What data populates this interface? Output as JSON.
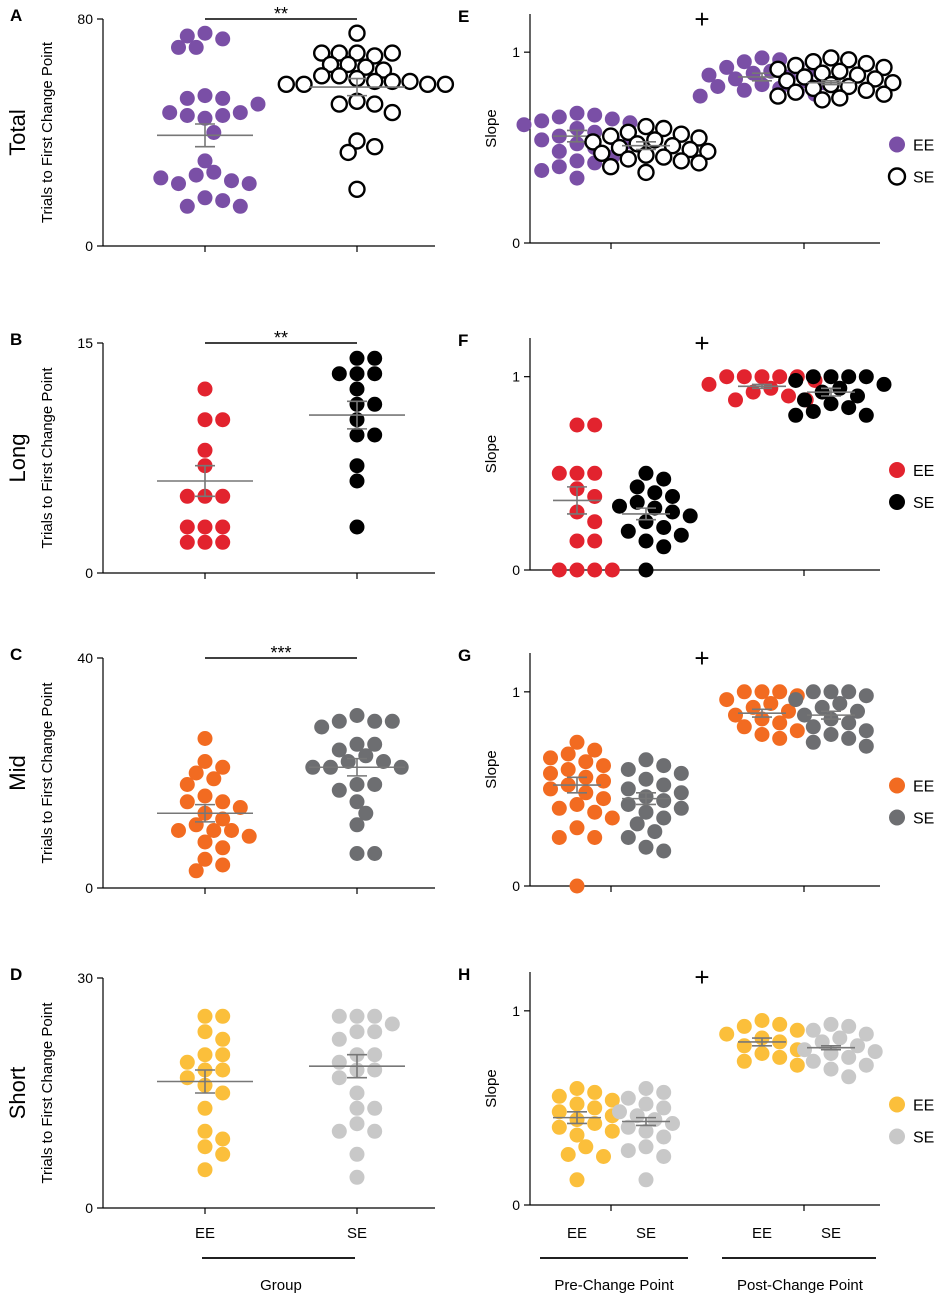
{
  "colors": {
    "purple": "#7a4fa6",
    "red": "#e2232e",
    "orange": "#f26b21",
    "yellow": "#fbbf3b",
    "black": "#000000",
    "gray": "#6d6e71",
    "lightgray": "#c8c8c8",
    "mean_line": "#777777"
  },
  "common": {
    "left_ylabel": "Trials to First Change Point",
    "right_ylabel": "Slope",
    "group_label": "Group",
    "pre_label": "Pre-Change Point",
    "post_label": "Post-Change Point",
    "cat_ee": "EE",
    "cat_se": "SE"
  },
  "chart_data": [
    {
      "panel": "A",
      "type": "scatter",
      "row_label": "Total",
      "ylabel": "Trials to First Change Point",
      "ylim": [
        0,
        80
      ],
      "yticks": [
        0,
        80
      ],
      "categories": [
        "EE",
        "SE"
      ],
      "significance": "**",
      "series": [
        {
          "name": "EE",
          "fill": "purple",
          "hollow": false,
          "mean": 39,
          "sem": 4,
          "values": [
            75,
            73,
            70,
            70,
            74,
            53,
            52,
            52,
            45,
            46,
            46,
            47,
            47,
            50,
            40,
            30,
            26,
            25,
            23,
            22,
            22,
            24,
            17,
            16,
            14,
            14
          ]
        },
        {
          "name": "SE",
          "fill": "black",
          "hollow": true,
          "mean": 56,
          "sem": 3,
          "values": [
            75,
            68,
            67,
            68,
            68,
            68,
            63,
            64,
            64,
            62,
            60,
            60,
            59,
            58,
            58,
            58,
            57,
            57,
            57,
            57,
            51,
            50,
            50,
            47,
            37,
            35,
            33,
            20
          ]
        }
      ]
    },
    {
      "panel": "B",
      "type": "scatter",
      "row_label": "Long",
      "ylabel": "Trials to First Change Point",
      "ylim": [
        0,
        15
      ],
      "yticks": [
        0,
        15
      ],
      "categories": [
        "EE",
        "SE"
      ],
      "significance": "**",
      "series": [
        {
          "name": "EE",
          "fill": "red",
          "hollow": false,
          "mean": 6,
          "sem": 1,
          "values": [
            12,
            10,
            10,
            8,
            7,
            5,
            5,
            5,
            3,
            3,
            3,
            2,
            2,
            2
          ]
        },
        {
          "name": "SE",
          "fill": "black",
          "hollow": false,
          "mean": 10.3,
          "sem": 0.9,
          "values": [
            14,
            14,
            13,
            13,
            13,
            12,
            11,
            11,
            10,
            9,
            9,
            7,
            6,
            3
          ]
        }
      ]
    },
    {
      "panel": "C",
      "type": "scatter",
      "row_label": "Mid",
      "ylabel": "Trials to First Change Point",
      "ylim": [
        0,
        40
      ],
      "yticks": [
        0,
        40
      ],
      "categories": [
        "EE",
        "SE"
      ],
      "significance": "***",
      "series": [
        {
          "name": "EE",
          "fill": "orange",
          "hollow": false,
          "mean": 13,
          "sem": 1.5,
          "values": [
            26,
            22,
            21,
            20,
            19,
            18,
            16,
            15,
            15,
            14,
            13,
            12,
            11,
            10,
            10,
            10,
            9,
            8,
            7,
            5,
            4,
            3
          ]
        },
        {
          "name": "SE",
          "fill": "gray",
          "hollow": false,
          "mean": 21,
          "sem": 1.5,
          "values": [
            30,
            29,
            29,
            29,
            28,
            25,
            25,
            24,
            23,
            22,
            22,
            21,
            21,
            21,
            18,
            18,
            17,
            15,
            13,
            11,
            6,
            6
          ]
        }
      ]
    },
    {
      "panel": "D",
      "type": "scatter",
      "row_label": "Short",
      "ylabel": "Trials to First Change Point",
      "ylim": [
        0,
        30
      ],
      "yticks": [
        0,
        30
      ],
      "categories": [
        "EE",
        "SE"
      ],
      "significance": "",
      "series": [
        {
          "name": "EE",
          "fill": "yellow",
          "hollow": false,
          "mean": 16.5,
          "sem": 1.5,
          "values": [
            25,
            25,
            23,
            22,
            20,
            20,
            19,
            18,
            18,
            17,
            16,
            15,
            13,
            10,
            9,
            8,
            7,
            5
          ]
        },
        {
          "name": "SE",
          "fill": "lightgray",
          "hollow": false,
          "mean": 18.5,
          "sem": 1.5,
          "values": [
            25,
            25,
            25,
            24,
            23,
            23,
            22,
            20,
            20,
            19,
            18,
            18,
            17,
            15,
            13,
            13,
            11,
            10,
            10,
            7,
            4
          ]
        }
      ]
    },
    {
      "panel": "E",
      "type": "scatter",
      "ylabel": "Slope",
      "ylim": [
        0,
        1.2
      ],
      "yticks": [
        0,
        1
      ],
      "categories": [
        "EE",
        "SE",
        "EE",
        "SE"
      ],
      "groups": [
        "Pre-Change Point",
        "Post-Change Point"
      ],
      "annotation": "+",
      "legend": [
        {
          "label": "EE",
          "fill": "purple",
          "hollow": false
        },
        {
          "label": "SE",
          "fill": "black",
          "hollow": true
        }
      ],
      "series": [
        {
          "name": "EE pre",
          "fill": "purple",
          "hollow": false,
          "mean": 0.56,
          "sem": 0.03,
          "values": [
            0.68,
            0.67,
            0.66,
            0.65,
            0.64,
            0.63,
            0.62,
            0.6,
            0.58,
            0.56,
            0.55,
            0.54,
            0.53,
            0.52,
            0.5,
            0.48,
            0.45,
            0.43,
            0.42,
            0.4,
            0.38,
            0.34
          ]
        },
        {
          "name": "SE pre",
          "fill": "black",
          "hollow": true,
          "mean": 0.51,
          "sem": 0.02,
          "values": [
            0.61,
            0.6,
            0.58,
            0.57,
            0.56,
            0.55,
            0.54,
            0.53,
            0.52,
            0.51,
            0.5,
            0.49,
            0.48,
            0.47,
            0.46,
            0.45,
            0.44,
            0.43,
            0.42,
            0.4,
            0.37
          ]
        },
        {
          "name": "EE post",
          "fill": "purple",
          "hollow": false,
          "mean": 0.87,
          "sem": 0.02,
          "values": [
            0.97,
            0.96,
            0.95,
            0.93,
            0.92,
            0.91,
            0.9,
            0.89,
            0.88,
            0.87,
            0.86,
            0.85,
            0.84,
            0.83,
            0.82,
            0.81,
            0.8,
            0.79,
            0.78,
            0.77
          ]
        },
        {
          "name": "SE post",
          "fill": "black",
          "hollow": true,
          "mean": 0.84,
          "sem": 0.01,
          "values": [
            0.97,
            0.96,
            0.95,
            0.94,
            0.93,
            0.92,
            0.91,
            0.9,
            0.89,
            0.88,
            0.87,
            0.86,
            0.85,
            0.84,
            0.83,
            0.82,
            0.81,
            0.8,
            0.79,
            0.78,
            0.77,
            0.76,
            0.75
          ]
        }
      ]
    },
    {
      "panel": "F",
      "type": "scatter",
      "ylabel": "Slope",
      "ylim": [
        0,
        1.2
      ],
      "yticks": [
        0,
        1
      ],
      "categories": [
        "EE",
        "SE",
        "EE",
        "SE"
      ],
      "groups": [
        "Pre-Change Point",
        "Post-Change Point"
      ],
      "annotation": "+",
      "legend": [
        {
          "label": "EE",
          "fill": "red",
          "hollow": false
        },
        {
          "label": "SE",
          "fill": "black",
          "hollow": false
        }
      ],
      "series": [
        {
          "name": "EE pre",
          "fill": "red",
          "hollow": false,
          "mean": 0.36,
          "sem": 0.07,
          "values": [
            0.75,
            0.75,
            0.5,
            0.5,
            0.5,
            0.42,
            0.38,
            0.3,
            0.25,
            0.15,
            0.15,
            0,
            0,
            0,
            0
          ]
        },
        {
          "name": "SE pre",
          "fill": "black",
          "hollow": false,
          "mean": 0.29,
          "sem": 0.03,
          "values": [
            0.5,
            0.47,
            0.43,
            0.4,
            0.38,
            0.35,
            0.33,
            0.32,
            0.3,
            0.28,
            0.25,
            0.22,
            0.2,
            0.18,
            0.15,
            0.12,
            0
          ]
        },
        {
          "name": "EE post",
          "fill": "red",
          "hollow": false,
          "mean": 0.95,
          "sem": 0.01,
          "values": [
            1,
            1,
            1,
            1,
            1,
            0.98,
            0.96,
            0.94,
            0.92,
            0.9,
            0.88,
            0.88
          ]
        },
        {
          "name": "SE post",
          "fill": "black",
          "hollow": false,
          "mean": 0.92,
          "sem": 0.02,
          "values": [
            1,
            1,
            1,
            1,
            0.98,
            0.96,
            0.94,
            0.92,
            0.9,
            0.88,
            0.86,
            0.84,
            0.82,
            0.8,
            0.8
          ]
        }
      ]
    },
    {
      "panel": "G",
      "type": "scatter",
      "ylabel": "Slope",
      "ylim": [
        0,
        1.2
      ],
      "yticks": [
        0,
        1
      ],
      "categories": [
        "EE",
        "SE",
        "EE",
        "SE"
      ],
      "groups": [
        "Pre-Change Point",
        "Post-Change Point"
      ],
      "annotation": "+",
      "legend": [
        {
          "label": "EE",
          "fill": "orange",
          "hollow": false
        },
        {
          "label": "SE",
          "fill": "gray",
          "hollow": false
        }
      ],
      "series": [
        {
          "name": "EE pre",
          "fill": "orange",
          "hollow": false,
          "mean": 0.52,
          "sem": 0.04,
          "values": [
            0.74,
            0.7,
            0.68,
            0.66,
            0.64,
            0.62,
            0.6,
            0.58,
            0.56,
            0.54,
            0.52,
            0.5,
            0.48,
            0.45,
            0.42,
            0.4,
            0.38,
            0.35,
            0.3,
            0.25,
            0.25,
            0
          ]
        },
        {
          "name": "SE pre",
          "fill": "gray",
          "hollow": false,
          "mean": 0.45,
          "sem": 0.03,
          "values": [
            0.65,
            0.62,
            0.6,
            0.58,
            0.55,
            0.52,
            0.5,
            0.48,
            0.46,
            0.44,
            0.42,
            0.4,
            0.38,
            0.35,
            0.32,
            0.28,
            0.25,
            0.2,
            0.18
          ]
        },
        {
          "name": "EE post",
          "fill": "orange",
          "hollow": false,
          "mean": 0.89,
          "sem": 0.02,
          "values": [
            1,
            1,
            1,
            0.98,
            0.96,
            0.94,
            0.92,
            0.9,
            0.88,
            0.86,
            0.84,
            0.82,
            0.8,
            0.78,
            0.76
          ]
        },
        {
          "name": "SE post",
          "fill": "gray",
          "hollow": false,
          "mean": 0.88,
          "sem": 0.02,
          "values": [
            1,
            1,
            1,
            0.98,
            0.96,
            0.94,
            0.92,
            0.9,
            0.88,
            0.86,
            0.84,
            0.82,
            0.8,
            0.78,
            0.76,
            0.74,
            0.72
          ]
        }
      ]
    },
    {
      "panel": "H",
      "type": "scatter",
      "ylabel": "Slope",
      "ylim": [
        0,
        1.2
      ],
      "yticks": [
        0,
        1
      ],
      "categories": [
        "EE",
        "SE",
        "EE",
        "SE"
      ],
      "groups": [
        "Pre-Change Point",
        "Post-Change Point"
      ],
      "annotation": "+",
      "legend": [
        {
          "label": "EE",
          "fill": "yellow",
          "hollow": false
        },
        {
          "label": "SE",
          "fill": "lightgray",
          "hollow": false
        }
      ],
      "series": [
        {
          "name": "EE pre",
          "fill": "yellow",
          "hollow": false,
          "mean": 0.45,
          "sem": 0.03,
          "values": [
            0.6,
            0.58,
            0.56,
            0.54,
            0.52,
            0.5,
            0.48,
            0.46,
            0.44,
            0.42,
            0.4,
            0.38,
            0.36,
            0.3,
            0.26,
            0.25,
            0.13
          ]
        },
        {
          "name": "SE pre",
          "fill": "lightgray",
          "hollow": false,
          "mean": 0.43,
          "sem": 0.02,
          "values": [
            0.6,
            0.58,
            0.55,
            0.52,
            0.5,
            0.48,
            0.46,
            0.44,
            0.42,
            0.4,
            0.38,
            0.35,
            0.3,
            0.28,
            0.25,
            0.13
          ]
        },
        {
          "name": "EE post",
          "fill": "yellow",
          "hollow": false,
          "mean": 0.84,
          "sem": 0.02,
          "values": [
            0.95,
            0.93,
            0.92,
            0.9,
            0.88,
            0.86,
            0.84,
            0.82,
            0.8,
            0.78,
            0.76,
            0.74,
            0.72
          ]
        },
        {
          "name": "SE post",
          "fill": "lightgray",
          "hollow": false,
          "mean": 0.81,
          "sem": 0.01,
          "values": [
            0.93,
            0.92,
            0.9,
            0.88,
            0.86,
            0.84,
            0.82,
            0.8,
            0.79,
            0.78,
            0.76,
            0.74,
            0.72,
            0.7,
            0.66
          ]
        }
      ]
    }
  ]
}
